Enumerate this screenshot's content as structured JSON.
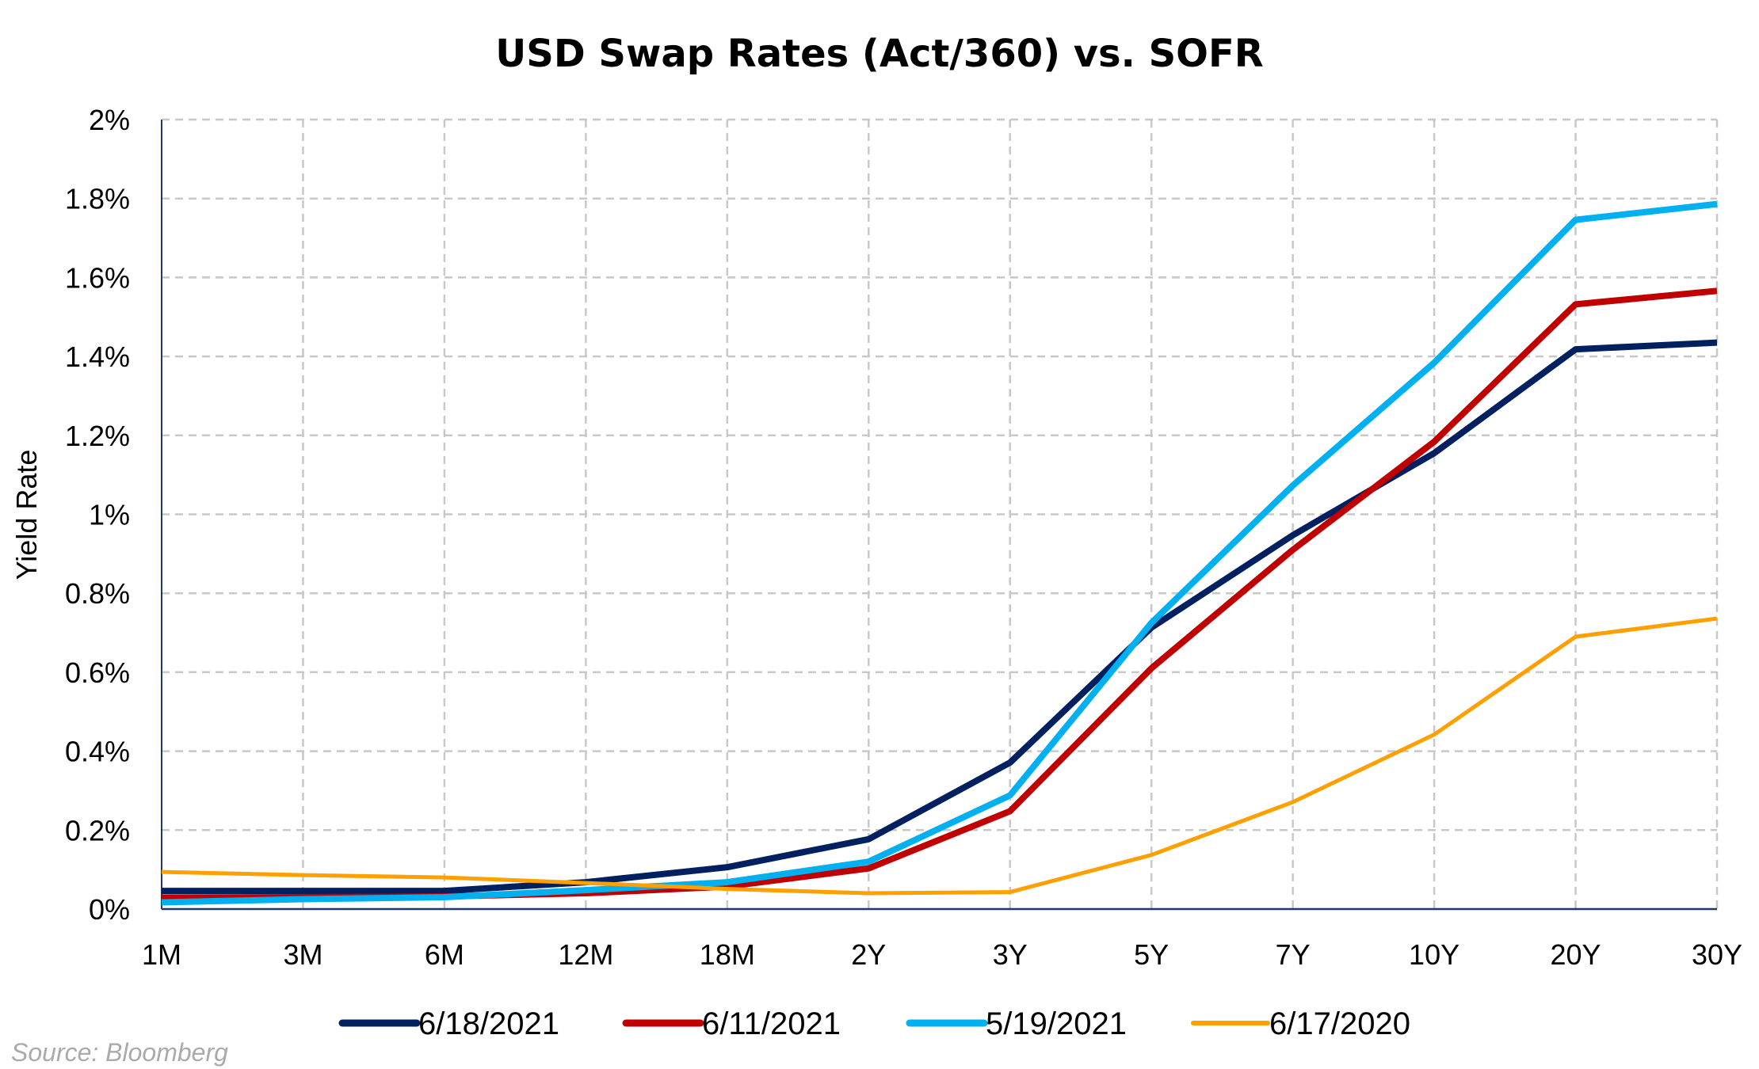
{
  "chart_data": {
    "type": "line",
    "title": "USD Swap Rates (Act/360) vs. SOFR",
    "xlabel": "",
    "ylabel": "Yield Rate",
    "categories": [
      "1M",
      "3M",
      "6M",
      "12M",
      "18M",
      "2Y",
      "3Y",
      "5Y",
      "7Y",
      "10Y",
      "20Y",
      "30Y"
    ],
    "ylim": [
      0,
      2
    ],
    "yticks": [
      0,
      0.2,
      0.4,
      0.6,
      0.8,
      1,
      1.2,
      1.4,
      1.6,
      1.8,
      2
    ],
    "ytick_labels": [
      "0%",
      "0.2%",
      "0.4%",
      "0.6%",
      "0.8%",
      "1%",
      "1.2%",
      "1.4%",
      "1.6%",
      "1.8%",
      "2%"
    ],
    "grid": true,
    "legend_position": "bottom",
    "series": [
      {
        "name": "6/18/2021",
        "color": "#002060",
        "values": [
          0.046,
          0.046,
          0.046,
          0.068,
          0.106,
          0.177,
          0.371,
          0.713,
          0.947,
          1.155,
          1.418,
          1.435
        ]
      },
      {
        "name": "6/11/2021",
        "color": "#C00000",
        "values": [
          0.029,
          0.03,
          0.032,
          0.04,
          0.057,
          0.103,
          0.248,
          0.61,
          0.91,
          1.184,
          1.532,
          1.566
        ]
      },
      {
        "name": "5/19/2021",
        "color": "#00B0F0",
        "values": [
          0.017,
          0.025,
          0.03,
          0.048,
          0.068,
          0.12,
          0.288,
          0.725,
          1.073,
          1.384,
          1.746,
          1.786
        ]
      },
      {
        "name": "6/17/2020",
        "color": "#FFA000",
        "values": [
          0.094,
          0.086,
          0.08,
          0.066,
          0.051,
          0.04,
          0.043,
          0.137,
          0.271,
          0.442,
          0.69,
          0.736
        ]
      }
    ],
    "source": "Source: Bloomberg"
  }
}
